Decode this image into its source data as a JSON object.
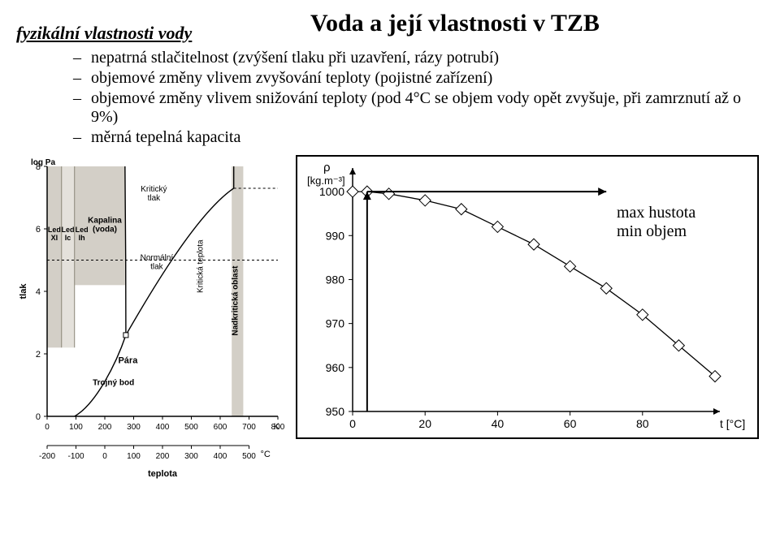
{
  "title": "Voda a její vlastnosti v TZB",
  "subtitle": "fyzikální vlastnosti vody",
  "bullets": [
    "nepatrná stlačitelnost (zvýšení tlaku při uzavření, rázy potrubí)",
    "objemové změny vlivem zvyšování teploty (pojistné zařízení)",
    "objemové změny vlivem snižování teploty (pod 4°C se objem vody opět zvyšuje, při zamrznutí až o 9%)",
    "měrná tepelná kapacita"
  ],
  "phase_diagram": {
    "ylabel": "tlak",
    "ylabel_top": "log Pa",
    "xlabel": "teplota",
    "yticks": [
      0,
      2,
      4,
      6,
      8
    ],
    "xticks_K": [
      0,
      100,
      200,
      300,
      400,
      500,
      600,
      700,
      800
    ],
    "x_unit_K": "K",
    "xticks_C": [
      -200,
      -100,
      0,
      100,
      200,
      300,
      400,
      500
    ],
    "x_unit_C": "°C",
    "labels": {
      "ledXI": "Led\nXI",
      "ledIc": "Led\nIc",
      "ledIh": "Led\nIh",
      "kapalina": "Kapalina\n(voda)",
      "krit_tlak": "Kritický\ntlak",
      "krit_tep": "Kritická\nteplota",
      "norm_tlak": "Normální\ntlak",
      "nadkrit": "Nadkritická oblast",
      "para": "Pára",
      "troj": "Trojný bod"
    },
    "region_color": "#d3cfc7",
    "line_color": "#000000"
  },
  "density_chart": {
    "type": "line",
    "ylabel": "ρ\n[kg.m⁻³]",
    "xlabel": "t [°C]",
    "yticks": [
      950,
      960,
      970,
      980,
      990,
      1000
    ],
    "xticks": [
      0,
      20,
      40,
      60,
      80
    ],
    "xlim": [
      0,
      100
    ],
    "ylim": [
      950,
      1005
    ],
    "points": [
      {
        "x": 0,
        "y": 1000
      },
      {
        "x": 4,
        "y": 1000
      },
      {
        "x": 10,
        "y": 999.5
      },
      {
        "x": 20,
        "y": 998
      },
      {
        "x": 30,
        "y": 996
      },
      {
        "x": 40,
        "y": 992
      },
      {
        "x": 50,
        "y": 988
      },
      {
        "x": 60,
        "y": 983
      },
      {
        "x": 70,
        "y": 978
      },
      {
        "x": 80,
        "y": 972
      },
      {
        "x": 90,
        "y": 965
      },
      {
        "x": 100,
        "y": 958
      }
    ],
    "marker": "diamond",
    "marker_size": 7,
    "line_color": "#000000",
    "background_color": "#ffffff",
    "grid_color": "#000000",
    "annotation": {
      "line1": "max hustota",
      "line2": "min objem"
    },
    "arrow_from_x": 4,
    "arrow_value": 1000
  }
}
